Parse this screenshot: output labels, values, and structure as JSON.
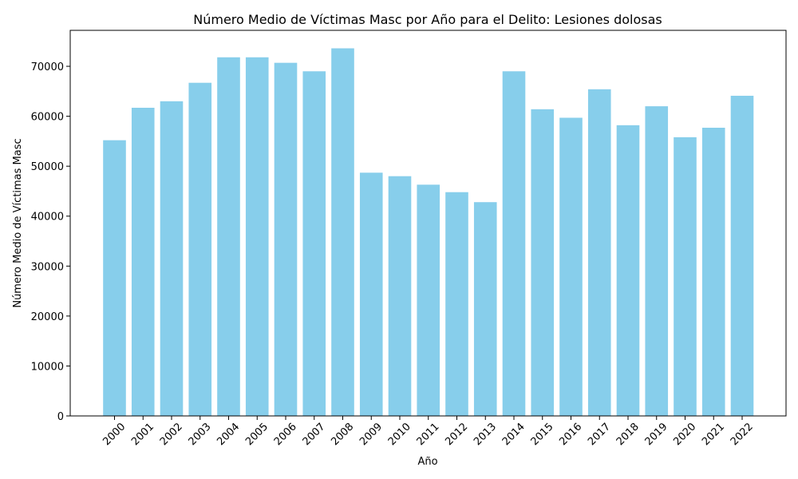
{
  "chart_data": {
    "type": "bar",
    "title": "Número Medio de Víctimas Masc por Año para el Delito: Lesiones dolosas",
    "xlabel": "Año",
    "ylabel": "Número Medio de Víctimas Masc",
    "categories": [
      "2000",
      "2001",
      "2002",
      "2003",
      "2004",
      "2005",
      "2006",
      "2007",
      "2008",
      "2009",
      "2010",
      "2011",
      "2012",
      "2013",
      "2014",
      "2015",
      "2016",
      "2017",
      "2018",
      "2019",
      "2020",
      "2021",
      "2022"
    ],
    "values": [
      55200,
      61700,
      63000,
      66700,
      71800,
      71800,
      70700,
      69000,
      73600,
      48700,
      48000,
      46300,
      44800,
      42800,
      69000,
      61400,
      59700,
      65400,
      58200,
      62000,
      55800,
      57700,
      64100
    ],
    "ylim": [
      0,
      77200
    ],
    "yticks": [
      0,
      10000,
      20000,
      30000,
      40000,
      50000,
      60000,
      70000
    ],
    "bar_color": "#87CEEB",
    "grid": false,
    "legend": "none"
  }
}
